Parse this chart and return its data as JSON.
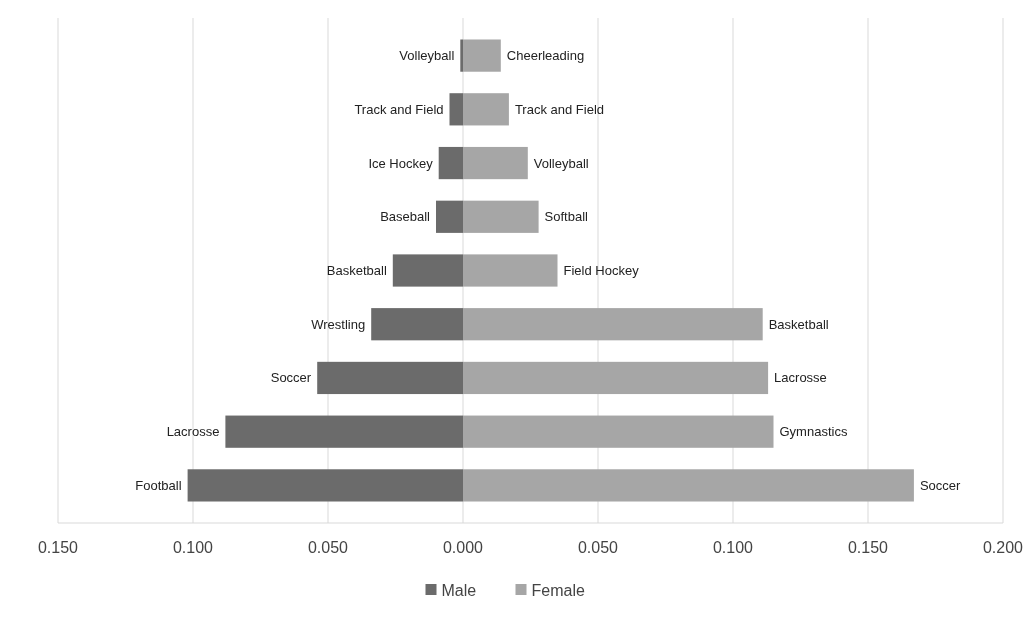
{
  "chart_data": {
    "type": "bar",
    "orientation": "horizontal",
    "stacked": true,
    "categories": [
      null,
      null,
      null,
      null,
      null,
      null,
      null,
      null,
      null
    ],
    "series": [
      {
        "name": "Male",
        "color": "#6b6b6b",
        "values": [
          -0.001,
          -0.005,
          -0.009,
          -0.01,
          -0.026,
          -0.034,
          -0.054,
          -0.088,
          -0.102
        ],
        "value_labels": [
          "Volleyball",
          "Track and Field",
          "Ice Hockey",
          "Baseball",
          "Basketball",
          "Wrestling",
          "Soccer",
          "Lacrosse",
          "Football"
        ]
      },
      {
        "name": "Female",
        "color": "#a6a6a6",
        "values": [
          0.014,
          0.017,
          0.024,
          0.028,
          0.035,
          0.111,
          0.113,
          0.115,
          0.167
        ],
        "value_labels": [
          "Cheerleading",
          "Track and Field",
          "Volleyball",
          "Softball",
          "Field Hockey",
          "Basketball",
          "Lacrosse",
          "Gymnastics",
          "Soccer"
        ]
      }
    ],
    "xlim": [
      -0.15,
      0.2
    ],
    "xticks": [
      {
        "value": -0.15,
        "label": "0.150"
      },
      {
        "value": -0.1,
        "label": "0.100"
      },
      {
        "value": -0.05,
        "label": "0.050"
      },
      {
        "value": 0,
        "label": "0.000"
      },
      {
        "value": 0.05,
        "label": "0.050"
      },
      {
        "value": 0.1,
        "label": "0.100"
      },
      {
        "value": 0.15,
        "label": "0.150"
      },
      {
        "value": 0.2,
        "label": "0.200"
      }
    ],
    "grid": "x",
    "legend": "bottom"
  }
}
